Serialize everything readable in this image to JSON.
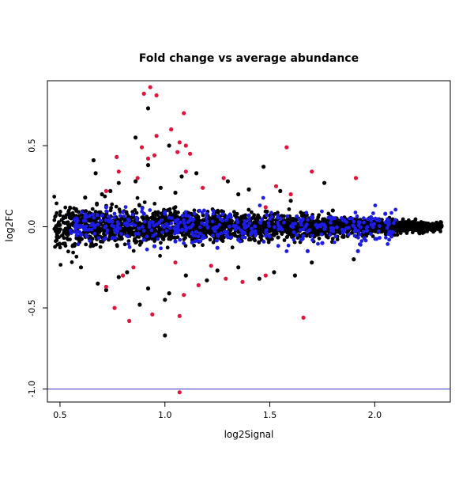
{
  "chart_data": {
    "type": "scatter",
    "title": "Fold change vs average abundance",
    "xlabel": "log2Signal",
    "ylabel": "log2FC",
    "xlim": [
      0.44,
      2.36
    ],
    "ylim": [
      -1.08,
      0.9
    ],
    "xticks": [
      0.5,
      1.0,
      1.5,
      2.0
    ],
    "xtick_labels": [
      "0.5",
      "1.0",
      "1.5",
      "2.0"
    ],
    "yticks": [
      -1.0,
      -0.5,
      0.0,
      0.5
    ],
    "ytick_labels": [
      "-1.0",
      "-0.5",
      "0.0",
      "0.5"
    ],
    "grid": false,
    "legend": "none",
    "reference_lines": [
      {
        "orientation": "horizontal",
        "y": -1.0,
        "color": "#3333cc"
      }
    ],
    "colors": {
      "background_points": "#000000",
      "highlight_red": "#e0143c",
      "highlight_blue": "#1c1ce6"
    },
    "series": [
      {
        "color": "#000000",
        "points": [
          [
            0.92,
            0.73
          ],
          [
            0.86,
            0.55
          ],
          [
            1.02,
            0.5
          ],
          [
            0.66,
            0.41
          ],
          [
            0.92,
            0.38
          ],
          [
            1.47,
            0.37
          ],
          [
            0.67,
            0.33
          ],
          [
            1.08,
            0.31
          ],
          [
            1.15,
            0.33
          ],
          [
            0.86,
            0.28
          ],
          [
            0.78,
            0.27
          ],
          [
            0.98,
            0.24
          ],
          [
            1.3,
            0.28
          ],
          [
            1.4,
            0.23
          ],
          [
            1.76,
            0.27
          ],
          [
            0.74,
            0.22
          ],
          [
            1.05,
            0.21
          ],
          [
            1.35,
            0.2
          ],
          [
            1.55,
            0.22
          ],
          [
            0.62,
            0.18
          ],
          [
            1.6,
            0.16
          ],
          [
            0.82,
            -0.28
          ],
          [
            0.78,
            -0.31
          ],
          [
            0.68,
            -0.35
          ],
          [
            0.72,
            -0.39
          ],
          [
            0.92,
            -0.38
          ],
          [
            1.02,
            -0.41
          ],
          [
            1.0,
            -0.45
          ],
          [
            1.2,
            -0.33
          ],
          [
            1.1,
            -0.3
          ],
          [
            1.45,
            -0.32
          ],
          [
            1.52,
            -0.28
          ],
          [
            1.62,
            -0.3
          ],
          [
            1.35,
            -0.25
          ],
          [
            0.88,
            -0.48
          ],
          [
            1.0,
            -0.67
          ],
          [
            0.6,
            -0.25
          ],
          [
            1.25,
            -0.27
          ],
          [
            1.7,
            -0.22
          ],
          [
            1.9,
            -0.2
          ],
          [
            1.8,
            0.1
          ],
          [
            0.7,
            0.2
          ]
        ]
      },
      {
        "color": "#1c1ce6",
        "points": [
          [
            0.58,
            0.05
          ],
          [
            0.62,
            0.06
          ],
          [
            0.7,
            0.07
          ],
          [
            0.8,
            0.09
          ],
          [
            0.9,
            0.08
          ],
          [
            1.0,
            0.09
          ],
          [
            1.1,
            0.07
          ],
          [
            1.2,
            0.08
          ],
          [
            1.3,
            0.06
          ],
          [
            1.4,
            0.07
          ],
          [
            1.55,
            0.05
          ],
          [
            1.7,
            0.06
          ],
          [
            1.85,
            0.04
          ],
          [
            2.05,
            0.08
          ],
          [
            0.6,
            -0.05
          ],
          [
            0.75,
            -0.07
          ],
          [
            0.9,
            -0.08
          ],
          [
            1.05,
            -0.09
          ],
          [
            1.18,
            -0.07
          ],
          [
            1.35,
            -0.08
          ],
          [
            1.5,
            -0.06
          ],
          [
            1.65,
            -0.08
          ],
          [
            1.75,
            -0.1
          ],
          [
            1.95,
            -0.07
          ],
          [
            2.08,
            -0.06
          ],
          [
            1.92,
            -0.15
          ],
          [
            1.68,
            -0.15
          ],
          [
            0.95,
            -0.12
          ],
          [
            1.25,
            -0.13
          ],
          [
            0.72,
            0.12
          ]
        ]
      },
      {
        "color": "#e0143c",
        "points": [
          [
            0.93,
            0.86
          ],
          [
            0.9,
            0.82
          ],
          [
            0.96,
            0.81
          ],
          [
            1.09,
            0.7
          ],
          [
            0.96,
            0.56
          ],
          [
            1.03,
            0.6
          ],
          [
            1.07,
            0.52
          ],
          [
            1.1,
            0.5
          ],
          [
            0.89,
            0.49
          ],
          [
            1.58,
            0.49
          ],
          [
            0.77,
            0.43
          ],
          [
            0.95,
            0.44
          ],
          [
            1.12,
            0.45
          ],
          [
            1.06,
            0.46
          ],
          [
            0.92,
            0.42
          ],
          [
            1.7,
            0.34
          ],
          [
            1.91,
            0.3
          ],
          [
            0.78,
            0.34
          ],
          [
            1.1,
            0.34
          ],
          [
            1.28,
            0.3
          ],
          [
            0.87,
            0.3
          ],
          [
            0.72,
            0.22
          ],
          [
            1.18,
            0.24
          ],
          [
            1.53,
            0.25
          ],
          [
            1.6,
            0.2
          ],
          [
            1.48,
            0.12
          ],
          [
            0.76,
            -0.5
          ],
          [
            0.83,
            -0.58
          ],
          [
            0.94,
            -0.54
          ],
          [
            1.07,
            -0.55
          ],
          [
            1.09,
            -0.42
          ],
          [
            0.72,
            -0.37
          ],
          [
            1.16,
            -0.36
          ],
          [
            1.29,
            -0.32
          ],
          [
            1.37,
            -0.34
          ],
          [
            1.48,
            -0.3
          ],
          [
            1.66,
            -0.56
          ],
          [
            1.07,
            -1.02
          ],
          [
            0.8,
            -0.3
          ],
          [
            1.05,
            -0.22
          ],
          [
            0.85,
            -0.25
          ],
          [
            1.22,
            -0.24
          ]
        ]
      }
    ]
  }
}
